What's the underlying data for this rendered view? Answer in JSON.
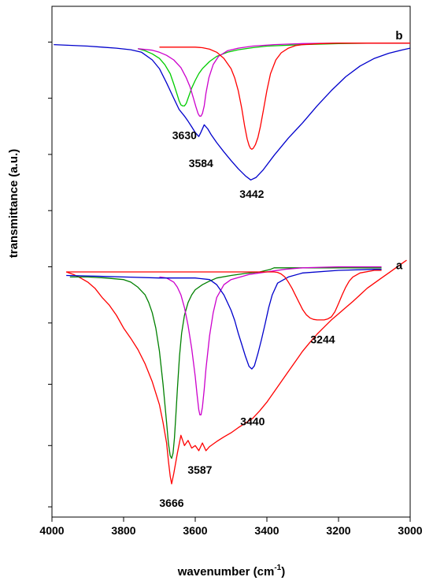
{
  "chart_data": {
    "type": "line",
    "title": "",
    "xlabel": "wavenumber (cm",
    "xlabel_sup": "-1",
    "xlabel_close": ")",
    "ylabel": "transmittance (a.u.)",
    "xlim": [
      4000,
      3000
    ],
    "x_reversed": true,
    "xticks": [
      "4000",
      "3800",
      "3600",
      "3400",
      "3200",
      "3000"
    ],
    "ylim": [
      0,
      100
    ],
    "y_ticks_unlabeled": [
      2,
      14,
      26,
      38,
      49,
      60,
      71,
      82,
      93
    ],
    "grid": false,
    "legend": "none",
    "panels": [
      {
        "label": "b",
        "peak_labels": [
          {
            "text": "3630",
            "x": 3630,
            "y": 74
          },
          {
            "text": "3584",
            "x": 3584,
            "y": 68.5
          },
          {
            "text": "3442",
            "x": 3442,
            "y": 62.5
          }
        ],
        "series": [
          {
            "color": "#0000cc",
            "x": [
              3995,
              3900,
              3860,
              3820,
              3780,
              3750,
              3720,
              3700,
              3680,
              3660,
              3645,
              3630,
              3620,
              3610,
              3600,
              3590,
              3585,
              3575,
              3565,
              3555,
              3540,
              3520,
              3500,
              3480,
              3460,
              3445,
              3430,
              3410,
              3380,
              3340,
              3300,
              3260,
              3220,
              3180,
              3140,
              3100,
              3060,
              3020,
              3000
            ],
            "y": [
              92.5,
              92.2,
              92.0,
              91.8,
              91.5,
              91.0,
              89.5,
              87.8,
              85.0,
              82.0,
              79.8,
              78.5,
              77.5,
              76.4,
              75.3,
              74.5,
              75.2,
              76.8,
              76.0,
              74.8,
              73.3,
              71.5,
              69.8,
              68.2,
              66.8,
              66.0,
              66.5,
              68.0,
              70.8,
              74.2,
              77.2,
              80.5,
              83.5,
              86.2,
              88.3,
              89.8,
              90.8,
              91.5,
              91.8
            ]
          },
          {
            "color": "#00cc00",
            "x": [
              3760,
              3740,
              3720,
              3700,
              3685,
              3670,
              3660,
              3650,
              3645,
              3640,
              3635,
              3630,
              3625,
              3620,
              3610,
              3600,
              3590,
              3580,
              3560,
              3540,
              3510,
              3480,
              3440,
              3400,
              3300,
              3200,
              3100,
              3000
            ],
            "y": [
              91.7,
              91.3,
              90.7,
              89.8,
              88.6,
              86.8,
              84.8,
              82.6,
              81.5,
              80.7,
              80.5,
              80.5,
              81.0,
              82.0,
              84.0,
              85.5,
              86.8,
              87.8,
              89.2,
              90.2,
              91.0,
              91.5,
              91.9,
              92.2,
              92.5,
              92.7,
              92.8,
              92.8
            ]
          },
          {
            "color": "#cc00cc",
            "x": [
              3760,
              3720,
              3700,
              3680,
              3660,
              3640,
              3625,
              3615,
              3605,
              3598,
              3592,
              3588,
              3584,
              3580,
              3575,
              3570,
              3562,
              3550,
              3535,
              3510,
              3480,
              3440,
              3380,
              3300,
              3200,
              3100,
              3000
            ],
            "y": [
              91.7,
              91.4,
              91.0,
              90.4,
              89.5,
              88.0,
              86.0,
              84.3,
              82.0,
              80.3,
              79.0,
              78.5,
              78.5,
              79.0,
              80.5,
              83.0,
              86.0,
              88.6,
              90.2,
              91.3,
              91.8,
              92.2,
              92.5,
              92.7,
              92.8,
              92.8,
              92.8
            ]
          },
          {
            "color": "#ff0000",
            "x": [
              3700,
              3650,
              3600,
              3580,
              3560,
              3540,
              3520,
              3500,
              3490,
              3480,
              3470,
              3462,
              3455,
              3450,
              3446,
              3442,
              3438,
              3432,
              3425,
              3418,
              3410,
              3400,
              3390,
              3375,
              3360,
              3340,
              3320,
              3300,
              3250,
              3200,
              3100,
              3000
            ],
            "y": [
              92.0,
              92.0,
              92.0,
              91.9,
              91.6,
              91.0,
              89.8,
              87.8,
              86.0,
              83.5,
              80.0,
              76.5,
              74.0,
              72.8,
              72.2,
              72.0,
              72.2,
              72.9,
              74.3,
              76.5,
              79.5,
              83.5,
              86.8,
              89.5,
              90.9,
              91.8,
              92.3,
              92.5,
              92.7,
              92.8,
              92.8,
              92.8
            ]
          }
        ]
      },
      {
        "label": "a",
        "peak_labels": [
          {
            "text": "3666",
            "x": 3666,
            "y": 2
          },
          {
            "text": "3587",
            "x": 3587,
            "y": 8.5
          },
          {
            "text": "3440",
            "x": 3440,
            "y": 18
          },
          {
            "text": "3244",
            "x": 3244,
            "y": 34
          }
        ],
        "series": [
          {
            "color": "#ff0000",
            "x": [
              3960,
              3940,
              3920,
              3900,
              3880,
              3860,
              3840,
              3820,
              3800,
              3780,
              3760,
              3740,
              3720,
              3700,
              3690,
              3680,
              3675,
              3670,
              3666,
              3660,
              3650,
              3640,
              3630,
              3620,
              3610,
              3600,
              3590,
              3580,
              3570,
              3560,
              3540,
              3520,
              3500,
              3480,
              3460,
              3440,
              3420,
              3400,
              3380,
              3360,
              3340,
              3320,
              3300,
              3280,
              3260,
              3240,
              3220,
              3200,
              3180,
              3160,
              3140,
              3120,
              3100,
              3080,
              3060,
              3040,
              3020,
              3010
            ],
            "y": [
              48.0,
              47.5,
              46.8,
              46.0,
              44.8,
              43.0,
              41.5,
              39.5,
              37.0,
              35.0,
              32.8,
              30.0,
              26.5,
              22.0,
              18.5,
              14.5,
              11.0,
              8.0,
              6.5,
              8.5,
              12.5,
              16.0,
              14.0,
              15.0,
              13.5,
              14.0,
              13.0,
              14.5,
              13.0,
              13.8,
              14.8,
              15.7,
              16.5,
              17.5,
              18.4,
              19.3,
              20.8,
              22.5,
              24.5,
              26.5,
              28.5,
              30.5,
              32.5,
              34.2,
              35.8,
              37.2,
              38.6,
              39.8,
              41.0,
              42.2,
              43.5,
              44.8,
              45.8,
              46.8,
              47.8,
              48.8,
              49.8,
              50.3
            ]
          },
          {
            "color": "#008000",
            "x": [
              3950,
              3900,
              3850,
              3800,
              3780,
              3760,
              3740,
              3730,
              3720,
              3710,
              3700,
              3690,
              3680,
              3675,
              3670,
              3666,
              3662,
              3658,
              3654,
              3650,
              3644,
              3638,
              3630,
              3620,
              3610,
              3600,
              3580,
              3560,
              3540,
              3500,
              3460,
              3420,
              3390,
              3380,
              3300,
              3200,
              3100,
              3080
            ],
            "y": [
              47.0,
              47.0,
              46.8,
              46.5,
              46.0,
              45.0,
              43.5,
              42.0,
              40.0,
              37.0,
              32.5,
              26.0,
              18.5,
              14.5,
              12.0,
              11.5,
              12.5,
              15.5,
              20.0,
              25.0,
              31.5,
              36.0,
              39.5,
              42.0,
              43.5,
              44.5,
              45.5,
              46.2,
              46.8,
              47.3,
              47.7,
              48.0,
              48.5,
              48.8,
              48.8,
              48.8,
              48.8,
              48.8
            ]
          },
          {
            "color": "#cc00cc",
            "x": [
              3700,
              3680,
              3660,
              3650,
              3640,
              3630,
              3620,
              3610,
              3600,
              3595,
              3590,
              3587,
              3584,
              3580,
              3575,
              3570,
              3560,
              3550,
              3540,
              3520,
              3500,
              3450,
              3350,
              3300,
              3250,
              3200,
              3100,
              3080
            ],
            "y": [
              47.0,
              46.8,
              46.0,
              45.0,
              43.5,
              41.0,
              37.5,
              33.0,
              27.5,
              24.0,
              21.0,
              20.0,
              20.0,
              21.5,
              25.0,
              29.0,
              35.5,
              40.0,
              43.0,
              45.5,
              46.5,
              47.5,
              48.5,
              48.8,
              48.9,
              49.0,
              49.0,
              49.0
            ]
          },
          {
            "color": "#0000cc",
            "x": [
              3960,
              3900,
              3800,
              3700,
              3600,
              3560,
              3540,
              3520,
              3500,
              3490,
              3480,
              3470,
              3460,
              3450,
              3442,
              3435,
              3425,
              3415,
              3405,
              3395,
              3385,
              3370,
              3340,
              3300,
              3200,
              3100,
              3080
            ],
            "y": [
              47.3,
              47.2,
              47.0,
              46.8,
              46.8,
              46.5,
              45.5,
              43.5,
              40.5,
              38.5,
              36.0,
              33.8,
              31.5,
              29.5,
              29.0,
              29.6,
              32.0,
              34.8,
              37.8,
              41.0,
              43.5,
              45.8,
              47.0,
              47.8,
              48.3,
              48.5,
              48.5
            ]
          },
          {
            "color": "#ff0000",
            "x": [
              3960,
              3800,
              3600,
              3500,
              3400,
              3380,
              3370,
              3360,
              3350,
              3340,
              3330,
              3320,
              3310,
              3300,
              3290,
              3280,
              3270,
              3260,
              3250,
              3240,
              3230,
              3220,
              3210,
              3200,
              3190,
              3180,
              3170,
              3160,
              3140,
              3100,
              3080
            ],
            "y": [
              48.0,
              48.0,
              48.0,
              48.0,
              48.0,
              48.0,
              47.9,
              47.6,
              47.0,
              46.0,
              44.8,
              43.4,
              42.0,
              40.6,
              39.6,
              39.0,
              38.7,
              38.6,
              38.6,
              38.6,
              38.8,
              39.2,
              40.2,
              41.8,
              43.5,
              45.0,
              46.2,
              47.0,
              47.8,
              48.3,
              48.3
            ]
          }
        ]
      }
    ]
  }
}
